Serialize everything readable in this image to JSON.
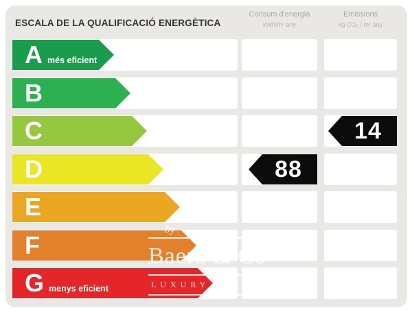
{
  "title": "ESCALA DE LA QUALIFICACIÓ ENERGÈTICA",
  "columns": {
    "consum": {
      "label": "Consum d'energia",
      "unit": "kWh/m² any"
    },
    "emissions": {
      "label": "Emissions",
      "unit": "kg CO₂ / m² any"
    }
  },
  "scale": [
    {
      "letter": "A",
      "note": "més eficient",
      "color": "#1a9c4d"
    },
    {
      "letter": "B",
      "note": "",
      "color": "#2db04f"
    },
    {
      "letter": "C",
      "note": "",
      "color": "#94c83e"
    },
    {
      "letter": "D",
      "note": "",
      "color": "#ebe625"
    },
    {
      "letter": "E",
      "note": "",
      "color": "#eba722"
    },
    {
      "letter": "F",
      "note": "",
      "color": "#e2802b"
    },
    {
      "letter": "G",
      "note": "menys eficient",
      "color": "#e52629"
    }
  ],
  "ratings": {
    "consum": {
      "value": "88",
      "row": "D"
    },
    "emissions": {
      "value": "14",
      "row": "C"
    }
  },
  "value_marker": {
    "background": "#0c0c0c",
    "text_color": "#ffffff"
  },
  "colors": {
    "panel_bg": "#e9e8e5",
    "cell_bg": "#ffffff",
    "title_text": "#333333",
    "header_text": "#a6a6a6"
  },
  "watermark": {
    "by": "by",
    "name": "Baerz & Co",
    "tagline": "LUXURY HOMES"
  },
  "chart_data": {
    "type": "bar",
    "title": "ESCALA DE LA QUALIFICACIÓ ENERGÈTICA",
    "categories": [
      "A",
      "B",
      "C",
      "D",
      "E",
      "F",
      "G"
    ],
    "category_notes": {
      "A": "més eficient",
      "G": "menys eficient"
    },
    "series": [
      {
        "name": "Consum d'energia",
        "unit": "kWh/m² any",
        "rating": "D",
        "value": 88
      },
      {
        "name": "Emissions",
        "unit": "kg CO₂ / m² any",
        "rating": "C",
        "value": 14
      }
    ],
    "palette": [
      "#1a9c4d",
      "#2db04f",
      "#94c83e",
      "#ebe625",
      "#eba722",
      "#e2802b",
      "#e52629"
    ],
    "legend_position": "none",
    "grid": false
  }
}
